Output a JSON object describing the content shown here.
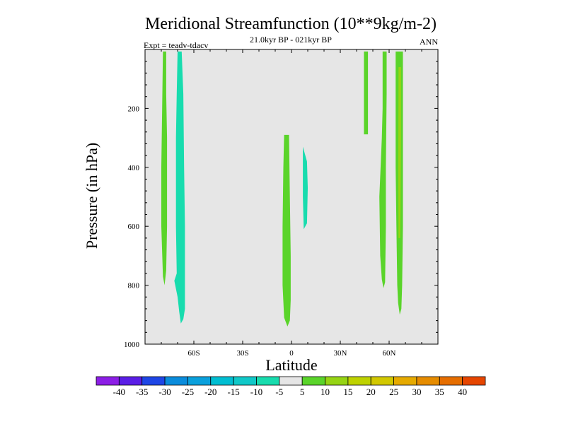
{
  "chart_data": {
    "type": "contour",
    "title": "Meridional Streamfunction (10**9kg/m-2)",
    "subtitle": "21.0kyr BP - 021kyr BP",
    "left_label": "Expt = teadv-tdacv",
    "right_label": "ANN",
    "xlabel": "Latitude",
    "ylabel": "Pressure (in hPa)",
    "xlim": [
      -90,
      90
    ],
    "ylim": [
      1000,
      0
    ],
    "x_ticks": [
      {
        "value": -60,
        "label": "60S"
      },
      {
        "value": -30,
        "label": "30S"
      },
      {
        "value": 0,
        "label": "0"
      },
      {
        "value": 30,
        "label": "30N"
      },
      {
        "value": 60,
        "label": "60N"
      }
    ],
    "y_ticks": [
      {
        "value": 200,
        "label": "200"
      },
      {
        "value": 400,
        "label": "400"
      },
      {
        "value": 600,
        "label": "600"
      },
      {
        "value": 800,
        "label": "800"
      },
      {
        "value": 1000,
        "label": "1000"
      }
    ],
    "background_color": "#e6e6e6",
    "contours": [
      {
        "name": "sh-positive-cell",
        "value": 5,
        "color": "#5ad42a",
        "polygon": [
          [
            -79,
            7
          ],
          [
            -77,
            7
          ],
          [
            -77,
            150
          ],
          [
            -76.5,
            300
          ],
          [
            -76.5,
            600
          ],
          [
            -77,
            750
          ],
          [
            -78,
            800
          ],
          [
            -79,
            770
          ],
          [
            -80,
            600
          ],
          [
            -80,
            400
          ],
          [
            -79.5,
            200
          ]
        ]
      },
      {
        "name": "sh-negative-cell",
        "value": -5,
        "color": "#18dcae",
        "polygon": [
          [
            -70,
            7
          ],
          [
            -67.5,
            7
          ],
          [
            -66.5,
            150
          ],
          [
            -66,
            400
          ],
          [
            -65.5,
            600
          ],
          [
            -65.5,
            800
          ],
          [
            -65.5,
            880
          ],
          [
            -66.5,
            915
          ],
          [
            -68,
            930
          ],
          [
            -69,
            890
          ],
          [
            -70,
            840
          ],
          [
            -72,
            785
          ],
          [
            -70.5,
            760
          ],
          [
            -71,
            600
          ],
          [
            -71,
            300
          ],
          [
            -70.5,
            150
          ]
        ]
      },
      {
        "name": "equatorial-positive-cell",
        "value": 5,
        "color": "#5ad42a",
        "polygon": [
          [
            -4.5,
            290
          ],
          [
            -1.5,
            290
          ],
          [
            -1,
            500
          ],
          [
            -0.5,
            700
          ],
          [
            -0.5,
            850
          ],
          [
            -1,
            920
          ],
          [
            -2.5,
            940
          ],
          [
            -4.5,
            910
          ],
          [
            -5.5,
            800
          ],
          [
            -5.5,
            600
          ],
          [
            -5,
            400
          ]
        ]
      },
      {
        "name": "equatorial-negative-cell",
        "value": -5,
        "color": "#18dcae",
        "polygon": [
          [
            7,
            330
          ],
          [
            9.5,
            380
          ],
          [
            10,
            470
          ],
          [
            9.5,
            590
          ],
          [
            7.5,
            610
          ],
          [
            7,
            500
          ]
        ]
      },
      {
        "name": "nh-positive-strip-45n",
        "value": 5,
        "color": "#5ad42a",
        "polygon": [
          [
            44.5,
            7
          ],
          [
            47,
            7
          ],
          [
            47,
            288
          ],
          [
            44.5,
            288
          ]
        ]
      },
      {
        "name": "nh-positive-cell-55n",
        "value": 5,
        "color": "#5ad42a",
        "polygon": [
          [
            56,
            7
          ],
          [
            58.5,
            7
          ],
          [
            58.5,
            150
          ],
          [
            58,
            400
          ],
          [
            58,
            600
          ],
          [
            57.5,
            790
          ],
          [
            56.5,
            810
          ],
          [
            55.5,
            780
          ],
          [
            54.5,
            700
          ],
          [
            54,
            500
          ],
          [
            55.5,
            300
          ],
          [
            56,
            200
          ]
        ]
      },
      {
        "name": "nh-positive-cell-66n",
        "value": 5,
        "color": "#5ad42a",
        "polygon": [
          [
            64,
            7
          ],
          [
            68.5,
            7
          ],
          [
            68.5,
            300
          ],
          [
            68.5,
            600
          ],
          [
            68,
            800
          ],
          [
            67.5,
            880
          ],
          [
            66.5,
            900
          ],
          [
            65.5,
            860
          ],
          [
            65,
            800
          ],
          [
            64.5,
            600
          ],
          [
            64,
            400
          ]
        ]
      },
      {
        "name": "nh-positive-core-66n",
        "value": 10,
        "color": "#96d414",
        "polygon": [
          [
            65.8,
            60
          ],
          [
            67.3,
            60
          ],
          [
            67.3,
            300
          ],
          [
            67,
            550
          ],
          [
            66.8,
            640
          ],
          [
            65.8,
            640
          ],
          [
            65.6,
            400
          ]
        ]
      }
    ],
    "colorbar": {
      "colors": [
        "#8c1ee6",
        "#5a1ee6",
        "#1e46e6",
        "#0a8cdc",
        "#0aa0dc",
        "#00bed2",
        "#10c8c8",
        "#18dcae",
        "#e6e6e6",
        "#5ad42a",
        "#96d414",
        "#bed200",
        "#d2c800",
        "#e6aa00",
        "#e68c00",
        "#e66e00",
        "#e64600"
      ],
      "labels": [
        "-40",
        "-35",
        "-30",
        "-25",
        "-20",
        "-15",
        "-10",
        "-5",
        "5",
        "10",
        "15",
        "20",
        "25",
        "30",
        "35",
        "40"
      ]
    }
  }
}
